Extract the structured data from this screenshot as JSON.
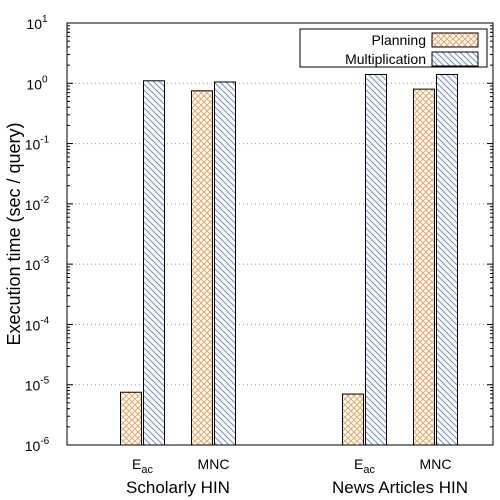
{
  "chart_data": {
    "type": "bar",
    "ylabel": "Execution time (sec / query)",
    "yscale": "log",
    "ylim": [
      1e-06,
      10
    ],
    "y_ticks": [
      {
        "value": 1e-06,
        "base": "10",
        "exp": "-6"
      },
      {
        "value": 1e-05,
        "base": "10",
        "exp": "-5"
      },
      {
        "value": 0.0001,
        "base": "10",
        "exp": "-4"
      },
      {
        "value": 0.001,
        "base": "10",
        "exp": "-3"
      },
      {
        "value": 0.01,
        "base": "10",
        "exp": "-2"
      },
      {
        "value": 0.1,
        "base": "10",
        "exp": "-1"
      },
      {
        "value": 1,
        "base": "10",
        "exp": "0"
      },
      {
        "value": 10,
        "base": "10",
        "exp": "1"
      }
    ],
    "grid": true,
    "legend_position": "top-right",
    "groups": [
      {
        "label": "Scholarly HIN",
        "categories": [
          {
            "label_main": "E",
            "label_sub": "ac"
          },
          {
            "label_main": "MNC",
            "label_sub": ""
          }
        ]
      },
      {
        "label": "News Articles HIN",
        "categories": [
          {
            "label_main": "E",
            "label_sub": "ac"
          },
          {
            "label_main": "MNC",
            "label_sub": ""
          }
        ]
      }
    ],
    "series": [
      {
        "name": "Planning",
        "color": "#f4a460",
        "pattern": "crosshatch",
        "values": [
          7.5e-06,
          0.75,
          7e-06,
          0.8
        ]
      },
      {
        "name": "Multiplication",
        "color": "#6f8fcf",
        "pattern": "diagonal",
        "values": [
          1.1,
          1.05,
          1.4,
          1.4
        ]
      }
    ]
  }
}
